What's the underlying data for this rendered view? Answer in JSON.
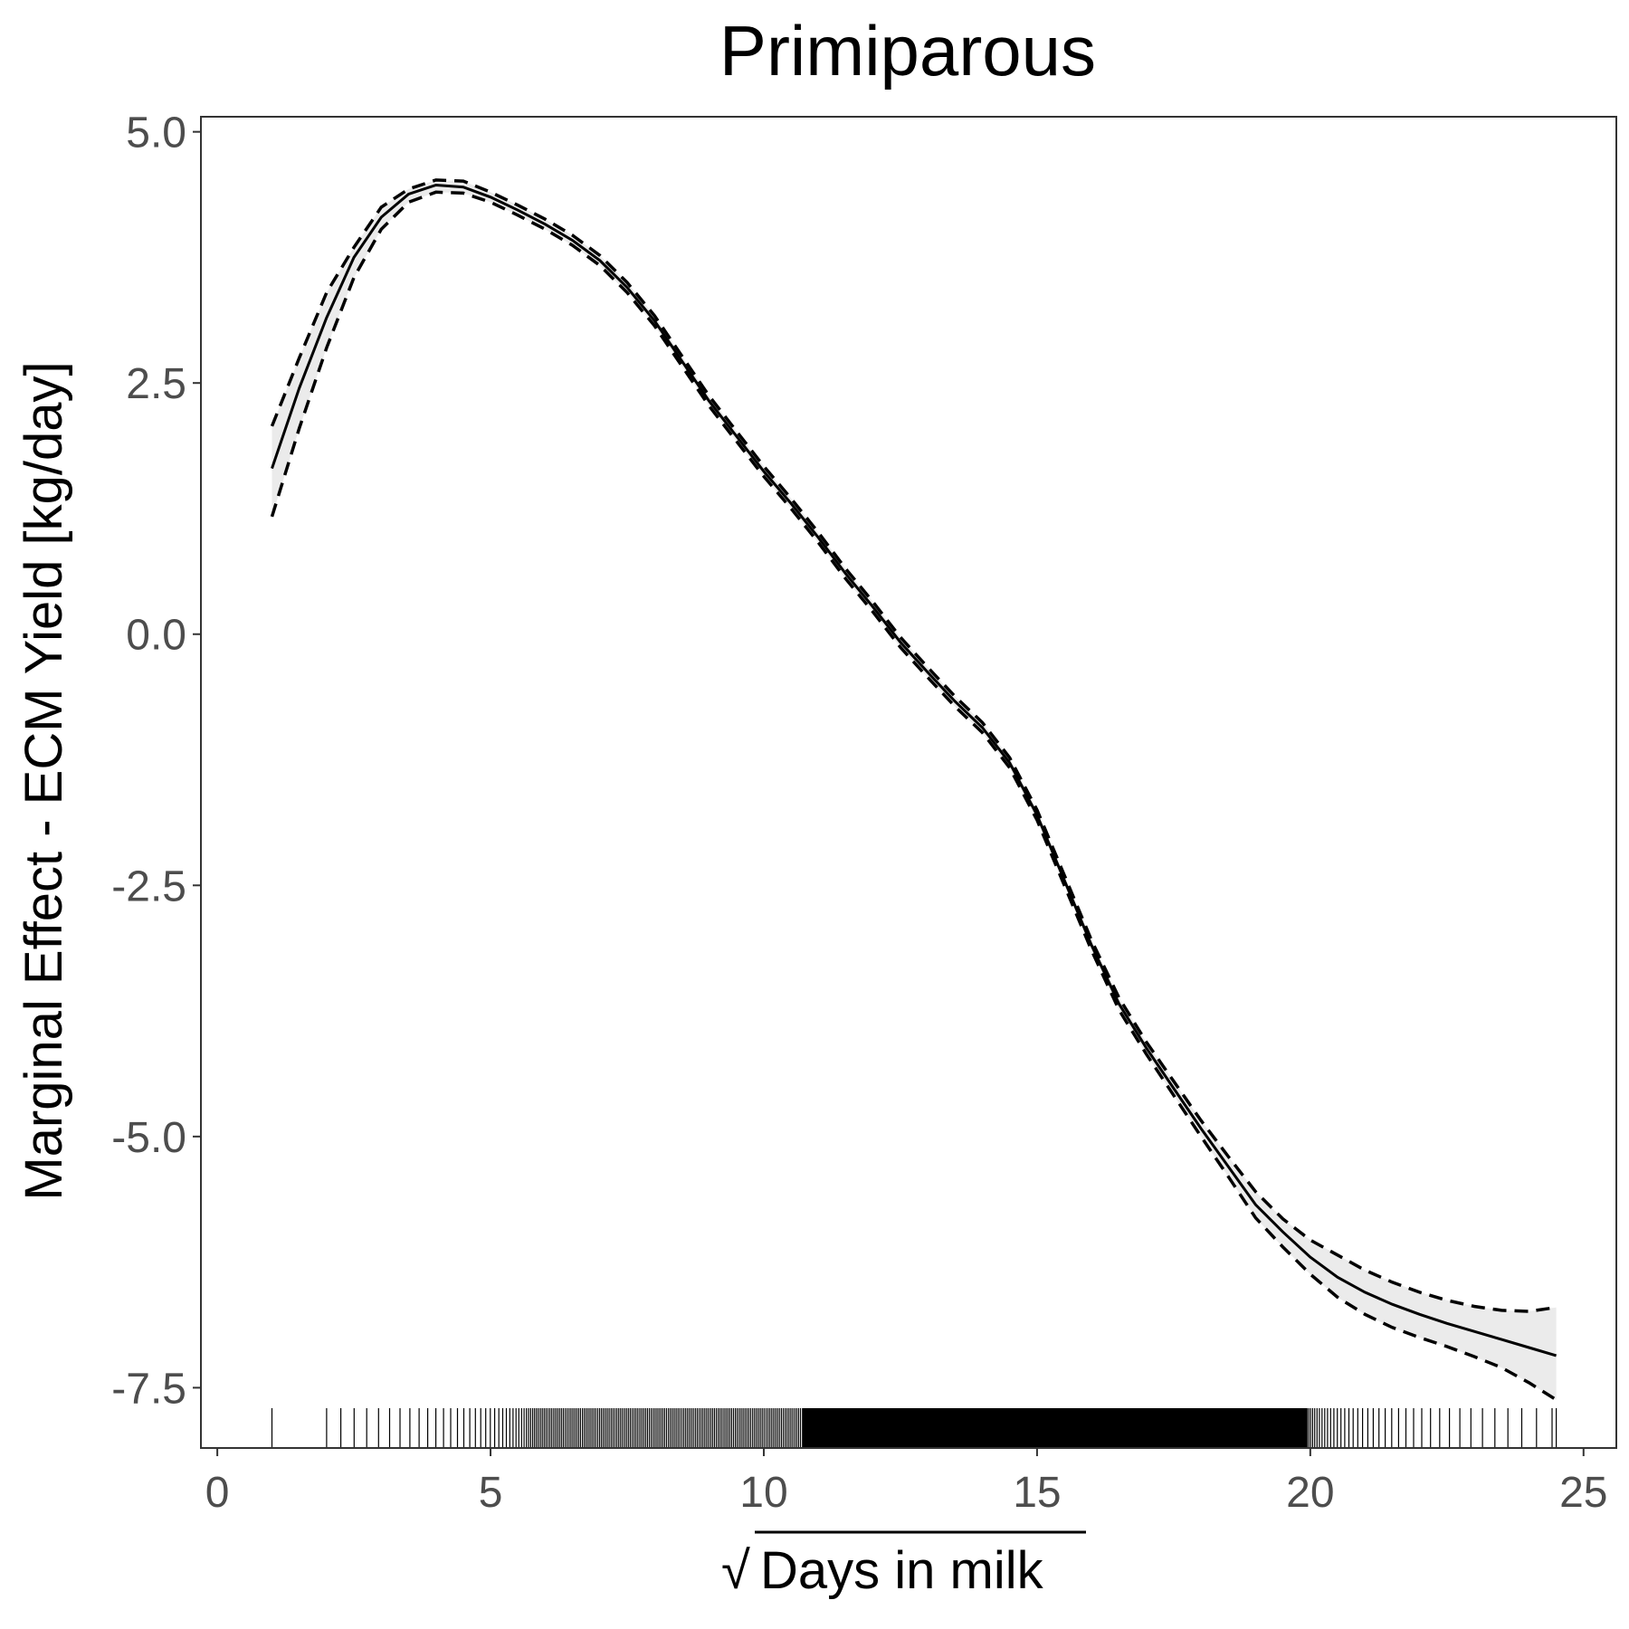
{
  "chart_data": {
    "type": "line",
    "title": "Primiparous",
    "xlabel": "Days in milk",
    "xlabel_transform": "√",
    "ylabel": "Marginal Effect - ECM Yield [kg/day]",
    "xlim": [
      -0.3,
      25.6
    ],
    "ylim": [
      -8.1,
      5.15
    ],
    "x_ticks": [
      0,
      5,
      10,
      15,
      20,
      25
    ],
    "x_tick_labels": [
      "0",
      "5",
      "10",
      "15",
      "20",
      "25"
    ],
    "y_ticks": [
      5.0,
      2.5,
      0.0,
      -2.5,
      -5.0,
      -7.5
    ],
    "y_tick_labels": [
      "5.0",
      "2.5",
      "0.0",
      "-2.5",
      "-5.0",
      "-7.5"
    ],
    "grid": false,
    "legend": "none",
    "colors": {
      "line": "#000000",
      "ribbon": "#ebebeb",
      "panel_border": "#333333",
      "tick_label": "#4d4d4d"
    },
    "series": [
      {
        "style": "solid",
        "x": [
          1.0,
          1.5,
          2.0,
          2.5,
          3.0,
          3.5,
          4.0,
          4.5,
          5.0,
          5.5,
          6.0,
          6.5,
          7.0,
          7.5,
          8.0,
          8.5,
          9.0,
          9.5,
          10.0,
          10.5,
          11.0,
          11.5,
          12.0,
          12.5,
          13.0,
          13.5,
          14.0,
          14.5,
          15.0,
          15.5,
          16.0,
          16.5,
          17.0,
          17.5,
          18.0,
          18.5,
          19.0,
          19.5,
          20.0,
          20.5,
          21.0,
          21.5,
          22.0,
          22.5,
          23.0,
          23.5,
          24.0,
          24.5
        ],
        "y": [
          1.65,
          2.45,
          3.15,
          3.75,
          4.15,
          4.38,
          4.47,
          4.45,
          4.35,
          4.22,
          4.08,
          3.92,
          3.72,
          3.45,
          3.12,
          2.72,
          2.32,
          1.97,
          1.62,
          1.3,
          0.96,
          0.6,
          0.27,
          -0.08,
          -0.38,
          -0.67,
          -0.93,
          -1.28,
          -1.8,
          -2.45,
          -3.1,
          -3.68,
          -4.12,
          -4.52,
          -4.92,
          -5.3,
          -5.68,
          -5.95,
          -6.2,
          -6.4,
          -6.55,
          -6.67,
          -6.77,
          -6.86,
          -6.94,
          -7.02,
          -7.1,
          -7.18
        ]
      },
      {
        "style": "dashed",
        "x": [
          1.0,
          1.5,
          2.0,
          2.5,
          3.0,
          3.5,
          4.0,
          4.5,
          5.0,
          5.5,
          6.0,
          6.5,
          7.0,
          7.5,
          8.0,
          8.5,
          9.0,
          9.5,
          10.0,
          10.5,
          11.0,
          11.5,
          12.0,
          12.5,
          13.0,
          13.5,
          14.0,
          14.5,
          15.0,
          15.5,
          16.0,
          16.5,
          17.0,
          17.5,
          18.0,
          18.5,
          19.0,
          19.5,
          20.0,
          20.5,
          21.0,
          21.5,
          22.0,
          22.5,
          23.0,
          23.5,
          24.0,
          24.5
        ],
        "y": [
          2.07,
          2.75,
          3.4,
          3.85,
          4.25,
          4.43,
          4.52,
          4.51,
          4.4,
          4.27,
          4.13,
          3.97,
          3.77,
          3.5,
          3.17,
          2.77,
          2.37,
          2.02,
          1.67,
          1.35,
          1.01,
          0.65,
          0.32,
          -0.03,
          -0.33,
          -0.62,
          -0.88,
          -1.23,
          -1.75,
          -2.4,
          -3.05,
          -3.62,
          -4.06,
          -4.45,
          -4.84,
          -5.2,
          -5.55,
          -5.82,
          -6.03,
          -6.18,
          -6.33,
          -6.45,
          -6.55,
          -6.63,
          -6.69,
          -6.73,
          -6.74,
          -6.7
        ]
      },
      {
        "style": "dashed",
        "x": [
          1.0,
          1.5,
          2.0,
          2.5,
          3.0,
          3.5,
          4.0,
          4.5,
          5.0,
          5.5,
          6.0,
          6.5,
          7.0,
          7.5,
          8.0,
          8.5,
          9.0,
          9.5,
          10.0,
          10.5,
          11.0,
          11.5,
          12.0,
          12.5,
          13.0,
          13.5,
          14.0,
          14.5,
          15.0,
          15.5,
          16.0,
          16.5,
          17.0,
          17.5,
          18.0,
          18.5,
          19.0,
          19.5,
          20.0,
          20.5,
          21.0,
          21.5,
          22.0,
          22.5,
          23.0,
          23.5,
          24.0,
          24.5
        ],
        "y": [
          1.17,
          2.05,
          2.85,
          3.55,
          4.03,
          4.3,
          4.4,
          4.39,
          4.3,
          4.17,
          4.03,
          3.87,
          3.67,
          3.4,
          3.07,
          2.67,
          2.27,
          1.92,
          1.57,
          1.25,
          0.91,
          0.55,
          0.22,
          -0.13,
          -0.43,
          -0.72,
          -0.98,
          -1.33,
          -1.85,
          -2.5,
          -3.15,
          -3.74,
          -4.18,
          -4.59,
          -5.0,
          -5.4,
          -5.81,
          -6.1,
          -6.37,
          -6.6,
          -6.77,
          -6.9,
          -7.0,
          -7.09,
          -7.19,
          -7.3,
          -7.45,
          -7.62
        ]
      }
    ],
    "rug": {
      "min": 1.0,
      "max": 24.5,
      "solid_from": 10.7,
      "solid_to": 19.95
    }
  }
}
